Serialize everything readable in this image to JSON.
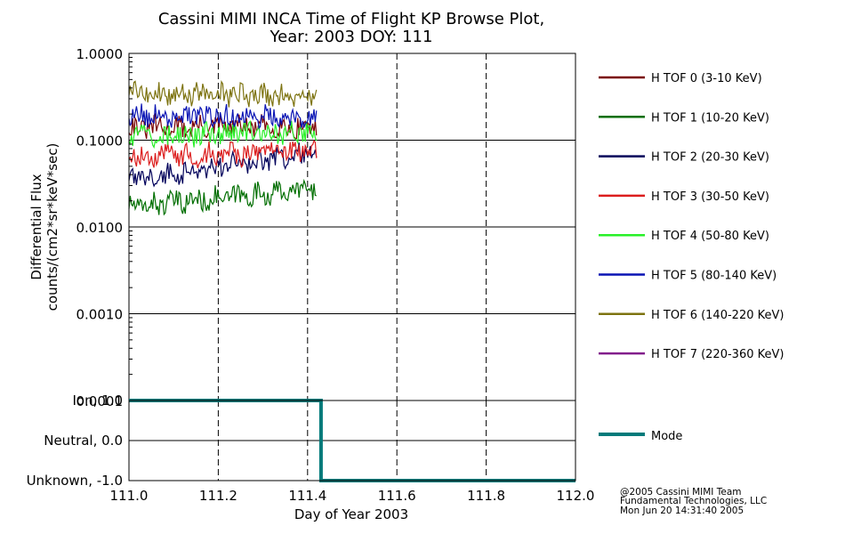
{
  "chart_data": {
    "type": "line",
    "title": "Cassini MIMI INCA Time of Flight KP Browse Plot,",
    "subtitle": "Year: 2003 DOY: 111",
    "xlabel": "Day of Year 2003",
    "xlim": [
      111.0,
      112.0
    ],
    "x_ticks": [
      "111.0",
      "111.2",
      "111.4",
      "111.6",
      "111.8",
      "112.0"
    ],
    "x_tick_values": [
      111.0,
      111.2,
      111.4,
      111.6,
      111.8,
      112.0
    ],
    "upper_panel": {
      "ylabel_line1": "Differential Flux",
      "ylabel_line2": "counts/(cm2*sr*keV*sec)",
      "yscale": "log",
      "ylim": [
        0.0001,
        1.0
      ],
      "y_ticks": [
        "0.0001",
        "0.0010",
        "0.0100",
        "0.1000",
        "1.0000"
      ],
      "y_tick_values": [
        0.0001,
        0.001,
        0.01,
        0.1,
        1.0
      ],
      "series": [
        {
          "name": "H TOF 0 (3-10 KeV)",
          "color": "#7a0000",
          "x_start": 111.0,
          "x_end": 111.42,
          "level": 0.14,
          "trend": 0.005
        },
        {
          "name": "H TOF 1 (10-20 KeV)",
          "color": "#006e00",
          "x_start": 111.0,
          "x_end": 111.42,
          "level": 0.017,
          "trend": 0.21
        },
        {
          "name": "H TOF 2 (20-30 KeV)",
          "color": "#00005a",
          "x_start": 111.0,
          "x_end": 111.42,
          "level": 0.035,
          "trend": 0.32
        },
        {
          "name": "H TOF 3 (30-50 KeV)",
          "color": "#dc1e1e",
          "x_start": 111.0,
          "x_end": 111.42,
          "level": 0.065,
          "trend": 0.05
        },
        {
          "name": "H TOF 4 (50-80 KeV)",
          "color": "#28f028",
          "x_start": 111.0,
          "x_end": 111.42,
          "level": 0.11,
          "trend": 0.06
        },
        {
          "name": "H TOF 5 (80-140 KeV)",
          "color": "#0a14b4",
          "x_start": 111.0,
          "x_end": 111.42,
          "level": 0.2,
          "trend": -0.05
        },
        {
          "name": "H TOF 6 (140-220 KeV)",
          "color": "#7d7310",
          "x_start": 111.0,
          "x_end": 111.42,
          "level": 0.34,
          "trend": -0.02
        },
        {
          "name": "H TOF 7 (220-360 KeV)",
          "color": "#821e8c",
          "x_start": 111.0,
          "x_end": 111.0,
          "level": 0.0001,
          "trend": 0.0
        }
      ]
    },
    "lower_panel": {
      "y_ticks": [
        "Unknown, -1.0",
        "Neutral, 0.0",
        "Ion, 1.0"
      ],
      "y_tick_values": [
        -1.0,
        0.0,
        1.0
      ],
      "ylim": [
        -1.0,
        1.0
      ],
      "series": [
        {
          "name": "Mode",
          "color": "#007a7a",
          "x": [
            111.0,
            111.43,
            111.43,
            112.0
          ],
          "y": [
            1.0,
            1.0,
            -1.0,
            -1.0
          ]
        }
      ]
    },
    "grid": true
  },
  "credits": {
    "line1": "@2005 Cassini MIMI Team",
    "line2": "Fundamental Technologies, LLC",
    "line3": "Mon Jun 20 14:31:40 2005"
  }
}
